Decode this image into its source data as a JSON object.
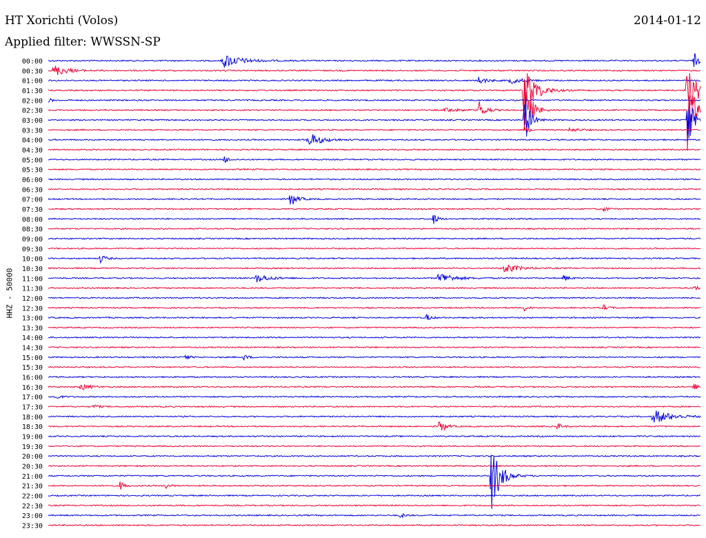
{
  "header": {
    "station": "HT Xorichti (Volos)",
    "date": "2014-01-12",
    "filter": "Applied filter: WWSSN-SP"
  },
  "chart_data": {
    "type": "line",
    "title": "HT Xorichti (Volos)",
    "date": "2014-01-12",
    "subtitle": "Applied filter: WWSSN-SP",
    "ylabel": "HHZ - 50000",
    "x_range_minutes": [
      0,
      30
    ],
    "colors": {
      "odd_rows": "#0000dd",
      "even_rows": "#ee0033"
    },
    "rows": [
      {
        "label": "00:00",
        "events": [
          [
            0.27,
            10,
            4
          ],
          [
            0.99,
            12,
            1
          ]
        ]
      },
      {
        "label": "00:30",
        "events": [
          [
            0.01,
            8,
            3
          ]
        ]
      },
      {
        "label": "01:00",
        "events": [
          [
            0.66,
            5,
            2
          ],
          [
            0.71,
            4,
            3
          ]
        ]
      },
      {
        "label": "01:30",
        "events": [
          [
            0.73,
            40,
            2.5
          ],
          [
            0.98,
            35,
            2.5
          ]
        ]
      },
      {
        "label": "02:00",
        "events": [
          [
            0.0,
            3,
            1
          ]
        ]
      },
      {
        "label": "02:30",
        "events": [
          [
            0.61,
            3,
            3
          ],
          [
            0.66,
            14,
            1.5
          ],
          [
            0.73,
            50,
            1.5
          ],
          [
            0.98,
            60,
            1.5
          ]
        ]
      },
      {
        "label": "03:00",
        "events": [
          [
            0.73,
            45,
            1.2
          ],
          [
            0.98,
            60,
            1
          ]
        ]
      },
      {
        "label": "03:30",
        "events": [
          [
            0.73,
            6,
            1
          ],
          [
            0.8,
            3,
            2
          ]
        ]
      },
      {
        "label": "04:00",
        "events": [
          [
            0.4,
            10,
            3
          ]
        ]
      },
      {
        "label": "04:30",
        "events": []
      },
      {
        "label": "05:00",
        "events": [
          [
            0.27,
            6,
            1
          ]
        ]
      },
      {
        "label": "05:30",
        "events": []
      },
      {
        "label": "06:00",
        "events": []
      },
      {
        "label": "06:30",
        "events": []
      },
      {
        "label": "07:00",
        "events": [
          [
            0.37,
            12,
            1.5
          ]
        ]
      },
      {
        "label": "07:30",
        "events": [
          [
            0.85,
            5,
            1
          ]
        ]
      },
      {
        "label": "08:00",
        "events": [
          [
            0.59,
            8,
            1
          ]
        ]
      },
      {
        "label": "08:30",
        "events": []
      },
      {
        "label": "09:00",
        "events": []
      },
      {
        "label": "09:30",
        "events": []
      },
      {
        "label": "10:00",
        "events": [
          [
            0.08,
            7,
            1
          ]
        ]
      },
      {
        "label": "10:30",
        "events": [
          [
            0.7,
            7,
            3
          ]
        ]
      },
      {
        "label": "11:00",
        "events": [
          [
            0.32,
            6,
            3
          ],
          [
            0.6,
            9,
            3
          ],
          [
            0.79,
            6,
            1
          ]
        ]
      },
      {
        "label": "11:30",
        "events": [
          [
            0.99,
            4,
            1
          ]
        ]
      },
      {
        "label": "12:00",
        "events": []
      },
      {
        "label": "12:30",
        "events": [
          [
            0.73,
            4,
            1
          ],
          [
            0.85,
            5,
            1
          ]
        ]
      },
      {
        "label": "13:00",
        "events": [
          [
            0.58,
            5,
            1
          ]
        ]
      },
      {
        "label": "13:30",
        "events": []
      },
      {
        "label": "14:00",
        "events": []
      },
      {
        "label": "14:30",
        "events": []
      },
      {
        "label": "15:00",
        "events": [
          [
            0.21,
            4,
            1
          ],
          [
            0.3,
            4,
            1
          ]
        ]
      },
      {
        "label": "15:30",
        "events": []
      },
      {
        "label": "16:00",
        "events": []
      },
      {
        "label": "16:30",
        "events": [
          [
            0.05,
            5,
            2
          ],
          [
            0.99,
            5,
            1
          ]
        ]
      },
      {
        "label": "17:00",
        "events": [
          [
            0.01,
            5,
            1
          ]
        ]
      },
      {
        "label": "17:30",
        "events": [
          [
            0.07,
            4,
            1
          ]
        ]
      },
      {
        "label": "18:00",
        "events": [
          [
            0.93,
            10,
            4
          ]
        ]
      },
      {
        "label": "18:30",
        "events": [
          [
            0.6,
            12,
            1.2
          ],
          [
            0.78,
            5,
            1
          ]
        ]
      },
      {
        "label": "19:00",
        "events": []
      },
      {
        "label": "19:30",
        "events": []
      },
      {
        "label": "20:00",
        "events": []
      },
      {
        "label": "20:30",
        "events": []
      },
      {
        "label": "21:00",
        "events": [
          [
            0.68,
            50,
            2
          ]
        ]
      },
      {
        "label": "21:30",
        "events": [
          [
            0.11,
            6,
            1
          ],
          [
            0.18,
            4,
            1
          ]
        ]
      },
      {
        "label": "22:00",
        "events": []
      },
      {
        "label": "22:30",
        "events": []
      },
      {
        "label": "23:00",
        "events": [
          [
            0.54,
            4,
            1
          ]
        ]
      },
      {
        "label": "23:30",
        "events": []
      }
    ]
  }
}
